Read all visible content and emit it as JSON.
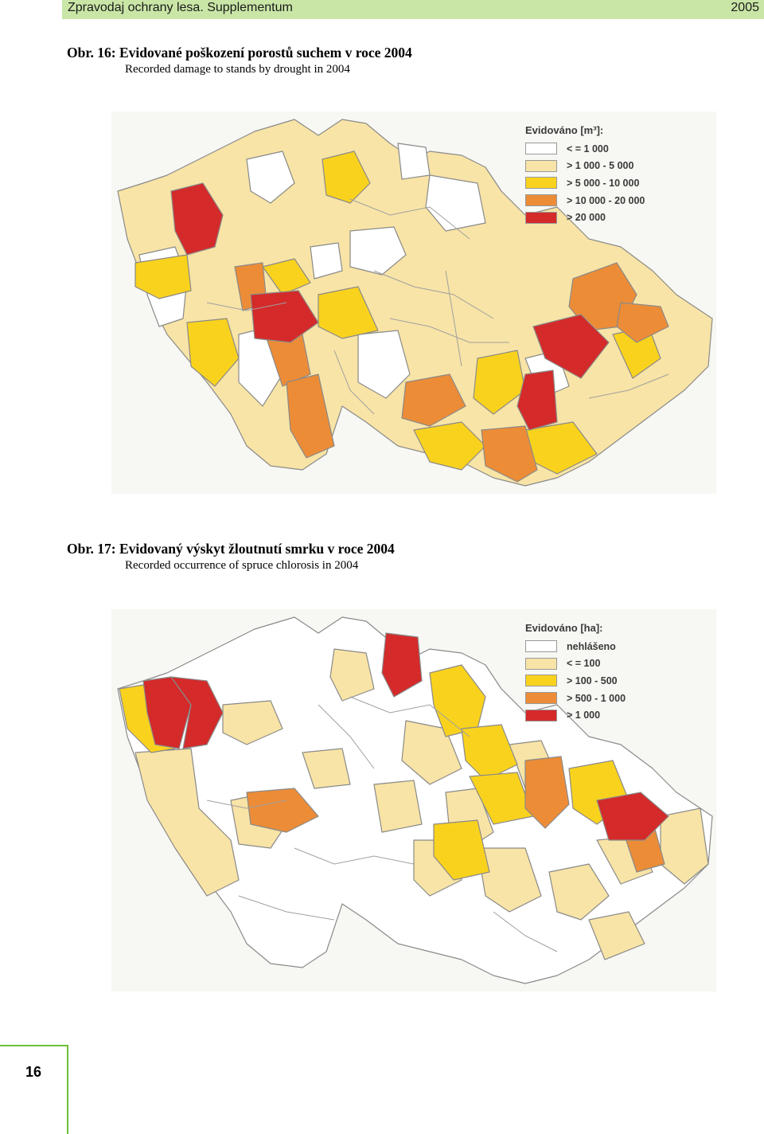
{
  "header": {
    "journal": "Zpravodaj ochrany lesa. Supplementum",
    "year": "2005"
  },
  "figures": [
    {
      "caption_cz": "Obr. 16: Evidované poškození porostů suchem v roce 2004",
      "caption_en": "Recorded damage to stands by drought in 2004",
      "legend": {
        "title": "Evidováno [m³]:",
        "classes": [
          {
            "label": "< = 1 000",
            "color": "#ffffff"
          },
          {
            "label": "> 1 000 - 5 000",
            "color": "#f8e4a6"
          },
          {
            "label": "> 5 000 - 10 000",
            "color": "#f9d21d"
          },
          {
            "label": "> 10 000 - 20 000",
            "color": "#ec8c37"
          },
          {
            "label": "> 20 000",
            "color": "#d42a2a"
          }
        ]
      }
    },
    {
      "caption_cz": "Obr. 17: Evidovaný výskyt žloutnutí smrku v roce 2004",
      "caption_en": "Recorded occurrence of spruce chlorosis in 2004",
      "legend": {
        "title": "Evidováno [ha]:",
        "classes": [
          {
            "label": "nehlášeno",
            "color": "#ffffff"
          },
          {
            "label": "< = 100",
            "color": "#f8e4a6"
          },
          {
            "label": "> 100 - 500",
            "color": "#f9d21d"
          },
          {
            "label": "> 500 - 1 000",
            "color": "#ec8c37"
          },
          {
            "label": "> 1 000",
            "color": "#d42a2a"
          }
        ]
      }
    }
  ],
  "page_number": "16"
}
